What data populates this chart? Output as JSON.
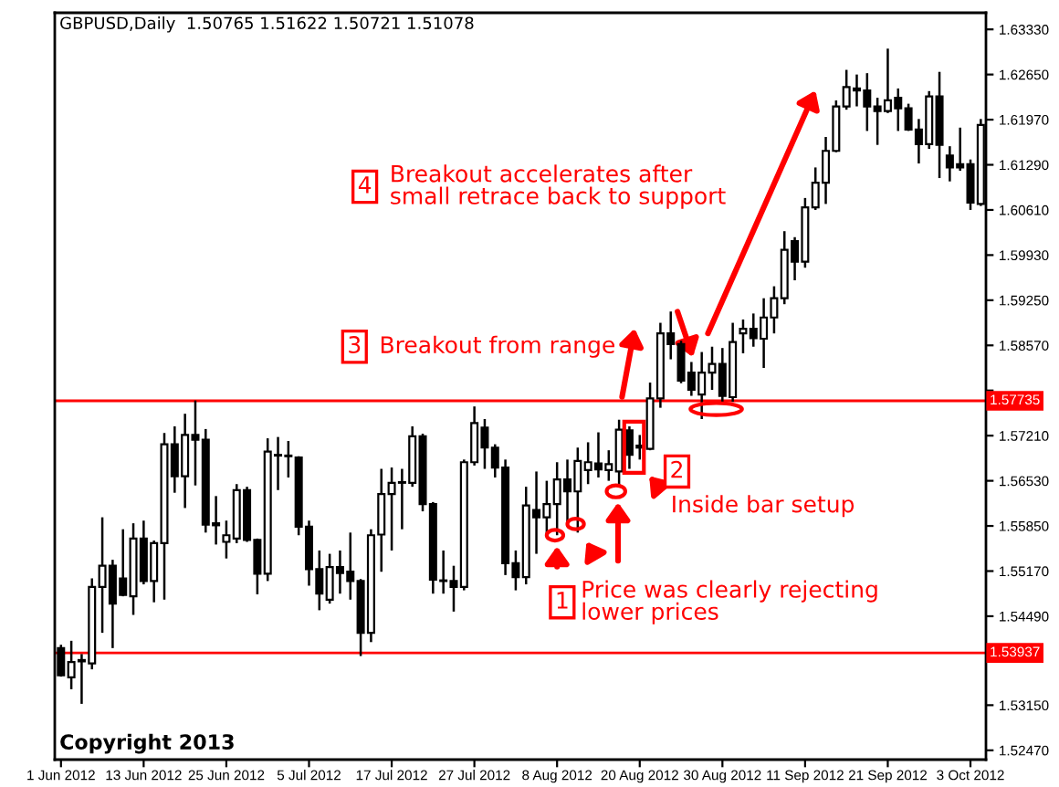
{
  "chart_data": {
    "type": "candlestick",
    "title": "GBPUSD,Daily  1.50765 1.51622 1.50721 1.51078",
    "categories": [
      "1 Jun 2012",
      null,
      null,
      null,
      null,
      null,
      null,
      null,
      "13 Jun 2012",
      null,
      null,
      null,
      null,
      null,
      null,
      null,
      "25 Jun 2012",
      null,
      null,
      null,
      null,
      null,
      null,
      null,
      "5 Jul 2012",
      null,
      null,
      null,
      null,
      null,
      null,
      null,
      "17 Jul 2012",
      null,
      null,
      null,
      null,
      null,
      null,
      null,
      "27 Jul 2012",
      null,
      null,
      null,
      null,
      null,
      null,
      null,
      "8 Aug 2012",
      null,
      null,
      null,
      null,
      null,
      null,
      null,
      "20 Aug 2012",
      null,
      null,
      null,
      null,
      null,
      null,
      null,
      "30 Aug 2012",
      null,
      null,
      null,
      null,
      null,
      null,
      null,
      "11 Sep 2012",
      null,
      null,
      null,
      null,
      null,
      null,
      null,
      "21 Sep 2012",
      null,
      null,
      null,
      null,
      null,
      null,
      null,
      "3 Oct 2012",
      null
    ],
    "ohlc": [
      [
        1.5401,
        1.5406,
        1.5358,
        1.536
      ],
      [
        1.5357,
        1.5412,
        1.5339,
        1.538
      ],
      [
        1.5381,
        1.5392,
        1.5317,
        1.5383
      ],
      [
        1.5378,
        1.5506,
        1.5369,
        1.5493
      ],
      [
        1.5493,
        1.5598,
        1.5424,
        1.5525
      ],
      [
        1.5525,
        1.5534,
        1.5401,
        1.5468
      ],
      [
        1.5506,
        1.558,
        1.5479,
        1.5481
      ],
      [
        1.5479,
        1.5589,
        1.5451,
        1.5566
      ],
      [
        1.5566,
        1.5593,
        1.5497,
        1.5502
      ],
      [
        1.5502,
        1.5563,
        1.547,
        1.5559
      ],
      [
        1.5559,
        1.5725,
        1.5474,
        1.5708
      ],
      [
        1.5708,
        1.5735,
        1.5635,
        1.566
      ],
      [
        1.566,
        1.5754,
        1.5612,
        1.5722
      ],
      [
        1.5722,
        1.5774,
        1.5646,
        1.5715
      ],
      [
        1.5715,
        1.5731,
        1.5575,
        1.5587
      ],
      [
        1.5589,
        1.563,
        1.5557,
        1.5586
      ],
      [
        1.5561,
        1.5593,
        1.5536,
        1.5571
      ],
      [
        1.5566,
        1.5648,
        1.5559,
        1.5639
      ],
      [
        1.5639,
        1.5644,
        1.5561,
        1.5564
      ],
      [
        1.5564,
        1.5566,
        1.5482,
        1.5513
      ],
      [
        1.5513,
        1.5717,
        1.5502,
        1.5697
      ],
      [
        1.5691,
        1.5719,
        1.5639,
        1.5692
      ],
      [
        1.5691,
        1.5713,
        1.5658,
        1.569
      ],
      [
        1.5688,
        1.569,
        1.5571,
        1.5584
      ],
      [
        1.5584,
        1.5593,
        1.5495,
        1.552
      ],
      [
        1.552,
        1.5548,
        1.5458,
        1.5483
      ],
      [
        1.5474,
        1.5543,
        1.5468,
        1.5523
      ],
      [
        1.5523,
        1.5548,
        1.5483,
        1.5514
      ],
      [
        1.5516,
        1.5575,
        1.5474,
        1.5502
      ],
      [
        1.5502,
        1.5505,
        1.5389,
        1.5424
      ],
      [
        1.5424,
        1.558,
        1.541,
        1.5571
      ],
      [
        1.5572,
        1.5671,
        1.5516,
        1.5633
      ],
      [
        1.5633,
        1.5673,
        1.5548,
        1.565
      ],
      [
        1.565,
        1.5671,
        1.558,
        1.5651
      ],
      [
        1.565,
        1.5735,
        1.5644,
        1.572
      ],
      [
        1.572,
        1.5724,
        1.5607,
        1.5618
      ],
      [
        1.5618,
        1.5621,
        1.5483,
        1.5504
      ],
      [
        1.5503,
        1.5548,
        1.5483,
        1.5502
      ],
      [
        1.5502,
        1.5525,
        1.5456,
        1.5493
      ],
      [
        1.5493,
        1.5685,
        1.5488,
        1.5681
      ],
      [
        1.5681,
        1.5765,
        1.5676,
        1.574
      ],
      [
        1.5733,
        1.5746,
        1.5671,
        1.5703
      ],
      [
        1.5703,
        1.5708,
        1.5658,
        1.5673
      ],
      [
        1.5673,
        1.5685,
        1.5511,
        1.5529
      ],
      [
        1.5529,
        1.5548,
        1.5488,
        1.5508
      ],
      [
        1.5508,
        1.5644,
        1.5497,
        1.5616
      ],
      [
        1.5609,
        1.5667,
        1.5543,
        1.5598
      ],
      [
        1.5598,
        1.5653,
        1.5571,
        1.5618
      ],
      [
        1.5618,
        1.5681,
        1.5571,
        1.5655
      ],
      [
        1.5655,
        1.5685,
        1.5584,
        1.5637
      ],
      [
        1.5637,
        1.5703,
        1.5575,
        1.5683
      ],
      [
        1.5669,
        1.5711,
        1.5648,
        1.5681
      ],
      [
        1.5679,
        1.5726,
        1.5658,
        1.567
      ],
      [
        1.5669,
        1.5699,
        1.5653,
        1.5678
      ],
      [
        1.5667,
        1.5745,
        1.5644,
        1.573
      ],
      [
        1.5729,
        1.5735,
        1.5671,
        1.5692
      ],
      [
        1.5703,
        1.5722,
        1.5685,
        1.5706
      ],
      [
        1.5701,
        1.5801,
        1.5699,
        1.5777
      ],
      [
        1.5777,
        1.5891,
        1.5763,
        1.5875
      ],
      [
        1.5875,
        1.5908,
        1.5836,
        1.5859
      ],
      [
        1.5859,
        1.5864,
        1.58,
        1.5804
      ],
      [
        1.5816,
        1.5832,
        1.5781,
        1.579
      ],
      [
        1.5783,
        1.5847,
        1.5746,
        1.5816
      ],
      [
        1.5816,
        1.5855,
        1.579,
        1.5829
      ],
      [
        1.5829,
        1.5853,
        1.5772,
        1.5781
      ],
      [
        1.5779,
        1.5891,
        1.5772,
        1.5862
      ],
      [
        1.5875,
        1.5896,
        1.5845,
        1.5882
      ],
      [
        1.5882,
        1.5905,
        1.5855,
        1.5868
      ],
      [
        1.5867,
        1.5928,
        1.5823,
        1.5899
      ],
      [
        1.5899,
        1.5946,
        1.5875,
        1.5928
      ],
      [
        1.5928,
        1.6029,
        1.5919,
        1.6001
      ],
      [
        1.6014,
        1.602,
        1.5955,
        1.5983
      ],
      [
        1.5983,
        1.6079,
        1.5974,
        1.6065
      ],
      [
        1.6065,
        1.6125,
        1.6061,
        1.6102
      ],
      [
        1.6102,
        1.6171,
        1.607,
        1.615
      ],
      [
        1.615,
        1.6226,
        1.6148,
        1.6217
      ],
      [
        1.6217,
        1.6272,
        1.6212,
        1.6246
      ],
      [
        1.6244,
        1.6265,
        1.6217,
        1.6241
      ],
      [
        1.6241,
        1.6267,
        1.618,
        1.6217
      ],
      [
        1.6217,
        1.623,
        1.6159,
        1.621
      ],
      [
        1.621,
        1.6304,
        1.6207,
        1.6226
      ],
      [
        1.623,
        1.6244,
        1.618,
        1.6214
      ],
      [
        1.6214,
        1.6221,
        1.618,
        1.6182
      ],
      [
        1.6182,
        1.6198,
        1.6131,
        1.616
      ],
      [
        1.616,
        1.624,
        1.6153,
        1.6232
      ],
      [
        1.6232,
        1.6269,
        1.6109,
        1.6159
      ],
      [
        1.6143,
        1.6157,
        1.6104,
        1.6125
      ],
      [
        1.613,
        1.6185,
        1.612,
        1.6125
      ],
      [
        1.613,
        1.6137,
        1.6061,
        1.6072
      ],
      [
        1.607,
        1.6198,
        1.6067,
        1.6189
      ]
    ],
    "ylim": [
      1.5233,
      1.6358
    ],
    "yticks": [
      {
        "value": 1.6333,
        "label": "1.63330"
      },
      {
        "value": 1.6265,
        "label": "1.62650"
      },
      {
        "value": 1.6197,
        "label": "1.61970"
      },
      {
        "value": 1.6129,
        "label": "1.61290"
      },
      {
        "value": 1.6061,
        "label": "1.60610"
      },
      {
        "value": 1.5993,
        "label": "1.59930"
      },
      {
        "value": 1.5925,
        "label": "1.59250"
      },
      {
        "value": 1.5857,
        "label": "1.58570"
      },
      {
        "value": 1.5789,
        "label": null
      },
      {
        "value": 1.5721,
        "label": "1.57210"
      },
      {
        "value": 1.5653,
        "label": "1.56530"
      },
      {
        "value": 1.5585,
        "label": "1.55850"
      },
      {
        "value": 1.5517,
        "label": "1.55170"
      },
      {
        "value": 1.5449,
        "label": "1.54490"
      },
      {
        "value": 1.5381,
        "label": null
      },
      {
        "value": 1.5315,
        "label": "1.53150"
      },
      {
        "value": 1.5247,
        "label": "1.52470"
      }
    ],
    "ref_lines": [
      {
        "axis": "y",
        "value": 1.57735,
        "label": "1.57735",
        "color": "#ff0000"
      },
      {
        "axis": "y",
        "value": 1.53937,
        "label": "1.53937",
        "color": "#ff0000"
      }
    ],
    "annotations": [
      "4",
      "Breakout accelerates after\nsmall retrace back to support",
      "3",
      "Breakout from range",
      "2",
      "Inside bar setup",
      "1",
      "Price was clearly rejecting\nlower prices",
      "Copyright 2013"
    ],
    "grid": false
  }
}
